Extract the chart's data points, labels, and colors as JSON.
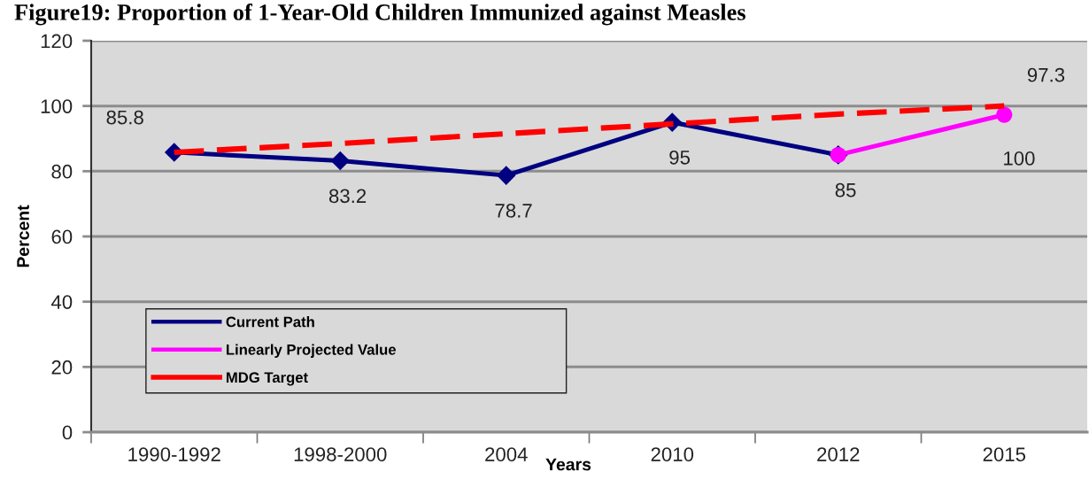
{
  "chart_data": {
    "type": "line",
    "title": "Figure19: Proportion of 1-Year-Old Children Immunized against Measles",
    "xlabel": "Years",
    "ylabel": "Percent",
    "categories": [
      "1990-1992",
      "1998-2000",
      "2004",
      "2010",
      "2012",
      "2015"
    ],
    "ylim": [
      0,
      120
    ],
    "yticks": [
      0,
      20,
      40,
      60,
      80,
      100,
      120
    ],
    "grid": "y",
    "legend": "bottom left",
    "line_style": "solid",
    "series": [
      {
        "name": "Current Path",
        "color": "#000080",
        "marker": "diamond",
        "values": [
          85.8,
          83.2,
          78.7,
          95,
          85,
          null
        ],
        "value_labels": [
          "85.8",
          "83.2",
          "78.7",
          "95",
          "85",
          null
        ]
      },
      {
        "name": "Linearly Projected Value",
        "color": "#ff00ff",
        "marker": "circle",
        "values": [
          null,
          null,
          null,
          null,
          85,
          97.3
        ],
        "value_labels": [
          null,
          null,
          null,
          null,
          null,
          "97.3"
        ]
      },
      {
        "name": "MDG Target",
        "color": "#ff0000",
        "marker": "none",
        "line_style": "dashed",
        "values": [
          85.8,
          88.5,
          91.5,
          94.5,
          97.5,
          100
        ],
        "value_labels": [
          null,
          null,
          null,
          null,
          null,
          "100"
        ]
      }
    ]
  }
}
